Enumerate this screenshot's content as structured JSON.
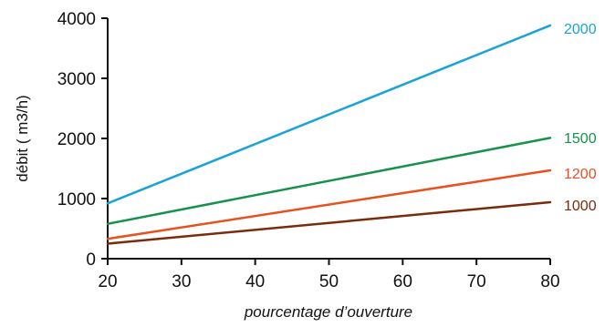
{
  "chart_data": {
    "type": "line",
    "title": "",
    "xlabel": "pourcentage d’ouverture",
    "ylabel": "débit ( m3/h)",
    "xlim": [
      20,
      80
    ],
    "ylim": [
      0,
      4000
    ],
    "xticks": [
      "20",
      "30",
      "40",
      "50",
      "60",
      "70",
      "80"
    ],
    "yticks": [
      "0",
      "1000",
      "2000",
      "3000",
      "4000"
    ],
    "grid": false,
    "legend": "series labels at right end of lines",
    "series": [
      {
        "name": "2000",
        "color": "#1aa3d6",
        "x": [
          20,
          80
        ],
        "y": [
          920,
          3880
        ]
      },
      {
        "name": "1500",
        "color": "#16924a",
        "x": [
          20,
          80
        ],
        "y": [
          580,
          2010
        ]
      },
      {
        "name": "1200",
        "color": "#e8501e",
        "x": [
          20,
          80
        ],
        "y": [
          330,
          1470
        ]
      },
      {
        "name": "1000",
        "color": "#7a2b0c",
        "x": [
          20,
          80
        ],
        "y": [
          250,
          940
        ]
      }
    ]
  }
}
